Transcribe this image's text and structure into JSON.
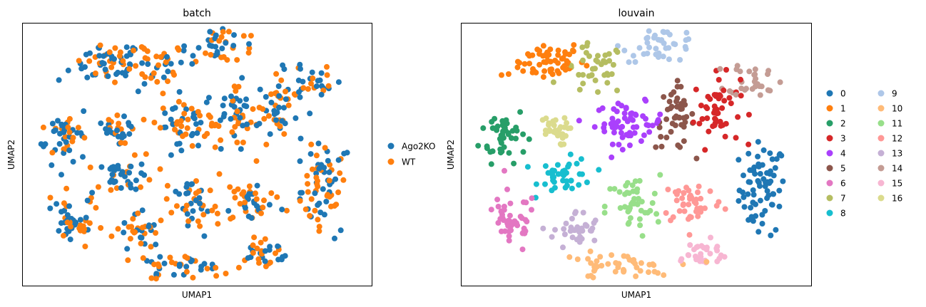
{
  "chart_data": [
    {
      "type": "scatter",
      "title": "batch",
      "xlabel": "UMAP1",
      "ylabel": "UMAP2",
      "xlim": [
        0,
        10
      ],
      "ylim": [
        0,
        10
      ],
      "grid": false,
      "legend_position": "right",
      "point_size": 4,
      "series": [
        {
          "name": "Ago2KO",
          "color": "#1f77b4"
        },
        {
          "name": "WT",
          "color": "#ff7f0e"
        }
      ]
    },
    {
      "type": "scatter",
      "title": "louvain",
      "xlabel": "UMAP1",
      "ylabel": "UMAP2",
      "xlim": [
        0,
        10
      ],
      "ylim": [
        0,
        10
      ],
      "grid": false,
      "legend_position": "right",
      "legend_columns": 2,
      "point_size": 4,
      "series": [
        {
          "name": "0",
          "color": "#1f77b4",
          "center": [
            8.6,
            3.7
          ],
          "spread": [
            0.6,
            1.6
          ],
          "n": 70
        },
        {
          "name": "1",
          "color": "#ff7f0e",
          "center": [
            2.3,
            8.6
          ],
          "spread": [
            1.1,
            0.7
          ],
          "n": 60
        },
        {
          "name": "2",
          "color": "#279e68",
          "center": [
            1.2,
            5.8
          ],
          "spread": [
            0.6,
            1.0
          ],
          "n": 45
        },
        {
          "name": "3",
          "color": "#d62728",
          "center": [
            7.3,
            6.7
          ],
          "spread": [
            0.6,
            1.2
          ],
          "n": 50
        },
        {
          "name": "4",
          "color": "#aa40fc",
          "center": [
            4.8,
            6.2
          ],
          "spread": [
            0.9,
            0.7
          ],
          "n": 60
        },
        {
          "name": "5",
          "color": "#8c564b",
          "center": [
            6.1,
            6.4
          ],
          "spread": [
            0.5,
            1.1
          ],
          "n": 45
        },
        {
          "name": "6",
          "color": "#e377c2",
          "center": [
            1.4,
            2.4
          ],
          "spread": [
            0.7,
            1.1
          ],
          "n": 45
        },
        {
          "name": "7",
          "color": "#b5bd61",
          "center": [
            3.8,
            8.2
          ],
          "spread": [
            0.8,
            0.9
          ],
          "n": 40
        },
        {
          "name": "8",
          "color": "#17becf",
          "center": [
            3.0,
            4.2
          ],
          "spread": [
            0.7,
            0.6
          ],
          "n": 40
        },
        {
          "name": "9",
          "color": "#aec7e8",
          "center": [
            5.7,
            9.2
          ],
          "spread": [
            1.0,
            0.6
          ],
          "n": 40
        },
        {
          "name": "10",
          "color": "#ffbb78",
          "center": [
            4.4,
            0.7
          ],
          "spread": [
            1.5,
            0.5
          ],
          "n": 45
        },
        {
          "name": "11",
          "color": "#98df8a",
          "center": [
            4.9,
            3.0
          ],
          "spread": [
            0.7,
            1.1
          ],
          "n": 45
        },
        {
          "name": "12",
          "color": "#ff9896",
          "center": [
            6.6,
            3.2
          ],
          "spread": [
            0.8,
            0.8
          ],
          "n": 45
        },
        {
          "name": "13",
          "color": "#c5b0d5",
          "center": [
            3.3,
            2.1
          ],
          "spread": [
            0.6,
            0.7
          ],
          "n": 35
        },
        {
          "name": "14",
          "color": "#c49c94",
          "center": [
            8.4,
            7.9
          ],
          "spread": [
            0.7,
            0.6
          ],
          "n": 30
        },
        {
          "name": "15",
          "color": "#f7b6d2",
          "center": [
            6.8,
            1.2
          ],
          "spread": [
            0.9,
            0.5
          ],
          "n": 30
        },
        {
          "name": "16",
          "color": "#dbdb8d",
          "center": [
            2.6,
            5.9
          ],
          "spread": [
            0.4,
            0.5
          ],
          "n": 30
        }
      ]
    }
  ]
}
